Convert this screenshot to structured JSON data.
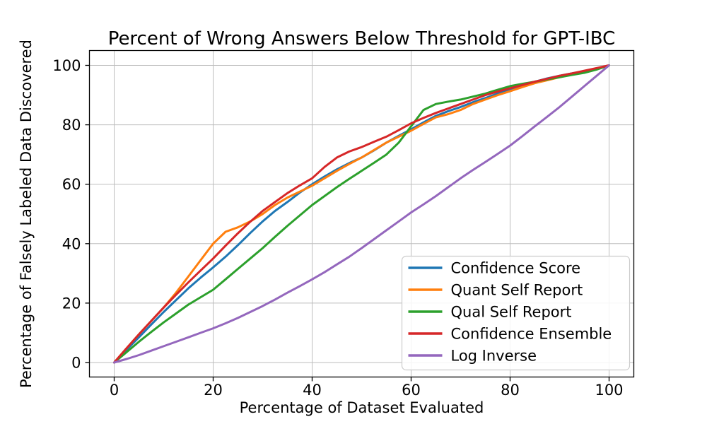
{
  "figure": {
    "background": "#ffffff",
    "spine_color": "#000000",
    "grid_color": "#bdbdbd",
    "tick_color": "#000000",
    "legend_border_color": "#cccccc",
    "legend_background": "rgba(255,255,255,0.85)"
  },
  "chart_data": {
    "type": "line",
    "title": "Percent of Wrong Answers Below Threshold for GPT-IBC",
    "xlabel": "Percentage of Dataset Evaluated",
    "ylabel": "Percentage of Falsely Labeled Data Discovered",
    "xlim": [
      0,
      100
    ],
    "ylim": [
      0,
      100
    ],
    "x_ticks": [
      0,
      20,
      40,
      60,
      80,
      100
    ],
    "y_ticks": [
      0,
      20,
      40,
      60,
      80,
      100
    ],
    "grid": true,
    "legend_position": "lower right",
    "x": [
      0,
      2.5,
      5,
      7.5,
      10,
      12.5,
      15,
      17.5,
      20,
      22.5,
      25,
      27.5,
      30,
      32.5,
      35,
      37.5,
      40,
      42.5,
      45,
      47.5,
      50,
      52.5,
      55,
      57.5,
      60,
      62.5,
      65,
      67.5,
      70,
      72.5,
      75,
      77.5,
      80,
      82.5,
      85,
      87.5,
      90,
      92.5,
      95,
      97.5,
      100
    ],
    "series": [
      {
        "name": "Confidence Score",
        "color": "#1f77b4",
        "values": [
          0,
          4.3,
          8.5,
          12.8,
          17,
          21,
          25,
          28.6,
          32,
          35.6,
          39.5,
          43.6,
          47.5,
          51,
          54,
          57.2,
          60,
          62.6,
          65,
          67.1,
          69,
          71.4,
          74,
          76.3,
          78.5,
          80.8,
          83,
          84.6,
          86,
          87.6,
          89,
          90.5,
          92,
          93.3,
          94.5,
          95.6,
          96.5,
          97.3,
          98,
          99,
          100
        ]
      },
      {
        "name": "Quant Self Report",
        "color": "#ff7f0e",
        "values": [
          0,
          4.8,
          9.5,
          14,
          18.5,
          23.5,
          29,
          34.5,
          40,
          44,
          45.5,
          47.5,
          50,
          53,
          55.5,
          57.5,
          59.5,
          62,
          64.5,
          66.8,
          69,
          71.5,
          74,
          76,
          78,
          80.3,
          82.5,
          83.6,
          85,
          87,
          88.5,
          90,
          91.3,
          92.7,
          94,
          95,
          96,
          97,
          98,
          99,
          100
        ]
      },
      {
        "name": "Qual Self Report",
        "color": "#2ca02c",
        "values": [
          0,
          3.5,
          7,
          10.3,
          13.5,
          16.5,
          19.5,
          22,
          24.5,
          28,
          31.5,
          35,
          38.5,
          42.3,
          46,
          49.5,
          53,
          56,
          59,
          61.8,
          64.5,
          67.2,
          70,
          74,
          79.5,
          85,
          87,
          87.8,
          88.5,
          89.5,
          90.5,
          91.8,
          93,
          93.8,
          94.5,
          95.3,
          96,
          96.8,
          97.5,
          98.6,
          100
        ]
      },
      {
        "name": "Confidence Ensemble",
        "color": "#d62728",
        "values": [
          0,
          4.8,
          9.5,
          14,
          18.5,
          22.8,
          27,
          31,
          35,
          39.3,
          43.5,
          47.4,
          51,
          54,
          57,
          59.6,
          62,
          65.8,
          69,
          71,
          72.5,
          74.3,
          76,
          78.2,
          80.5,
          82.3,
          84,
          85.5,
          87,
          88.5,
          90,
          91.2,
          92.3,
          93.4,
          94.5,
          95.5,
          96.5,
          97.3,
          98.2,
          99.1,
          100
        ]
      },
      {
        "name": "Log Inverse",
        "color": "#9467bd",
        "values": [
          0,
          1.2,
          2.5,
          4,
          5.5,
          7,
          8.5,
          10,
          11.5,
          13.2,
          15,
          17,
          19,
          21.2,
          23.5,
          25.7,
          28,
          30.4,
          33,
          35.6,
          38.5,
          41.5,
          44.5,
          47.5,
          50.5,
          53.2,
          56,
          59,
          62,
          64.8,
          67.5,
          70.2,
          73,
          76.2,
          79.5,
          82.7,
          86,
          89.5,
          93,
          96.5,
          100
        ]
      }
    ]
  }
}
